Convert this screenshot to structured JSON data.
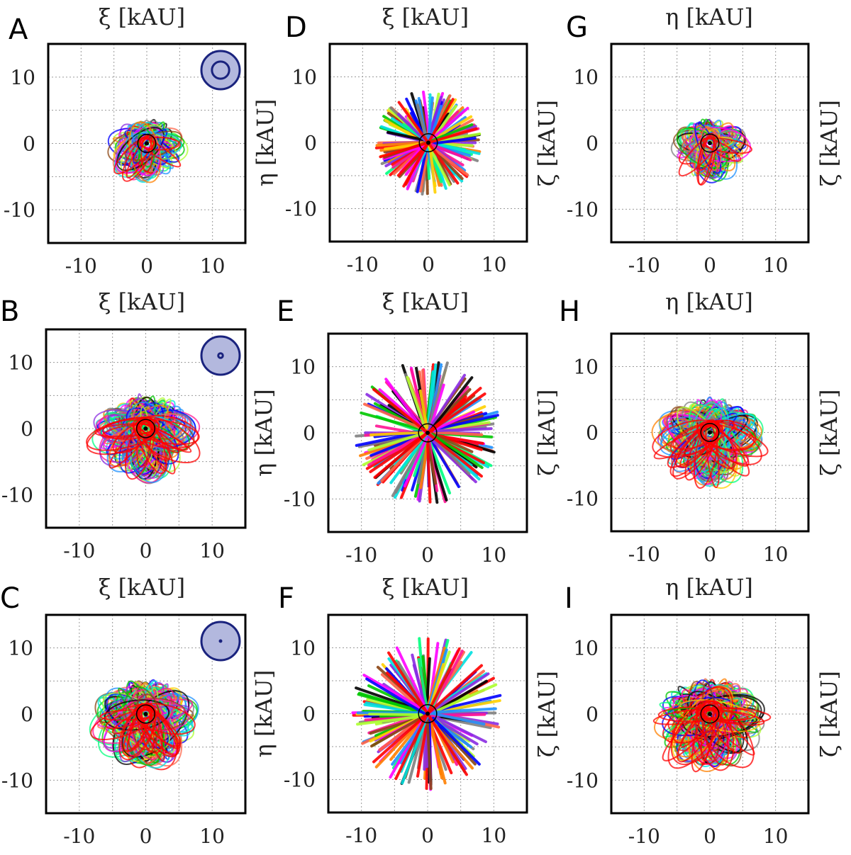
{
  "figure": {
    "colors": {
      "traj_palette": [
        "#ff0000",
        "#00c800",
        "#0000ff",
        "#ff00ff",
        "#00e0e0",
        "#ffd000",
        "#000000",
        "#ff8000",
        "#8a2be2",
        "#7f7f7f",
        "#00ff7f",
        "#ff1493",
        "#1e90ff",
        "#adff2f",
        "#8b4513",
        "#ff6347"
      ],
      "inset_fill": "#b3b8de",
      "inset_stroke": "#1a237e",
      "highlight": "#ff0000"
    }
  },
  "chart_data": [
    {
      "panel": "A",
      "type": "scatter",
      "style": "loops",
      "xlabel": "ξ [kAU]",
      "ylabel": "",
      "right_label": "",
      "xlim": [
        -15,
        15
      ],
      "ylim": [
        -15,
        15
      ],
      "xticks": [
        "-10",
        "0",
        "10"
      ],
      "yticks": [
        "-10",
        "0",
        "10"
      ],
      "xtick_values": [
        -10,
        0,
        10
      ],
      "ytick_values": [
        -10,
        0,
        10
      ],
      "extent_kau": 8.5,
      "inset": {
        "shown": true,
        "inner_ratio": 0.45
      }
    },
    {
      "panel": "B",
      "type": "scatter",
      "style": "loops",
      "xlabel": "ξ [kAU]",
      "ylabel": "",
      "right_label": "",
      "xlim": [
        -15,
        15
      ],
      "ylim": [
        -15,
        15
      ],
      "xticks": [
        "-10",
        "0",
        "10"
      ],
      "yticks": [
        "-10",
        "0",
        "10"
      ],
      "xtick_values": [
        -10,
        0,
        10
      ],
      "ytick_values": [
        -10,
        0,
        10
      ],
      "extent_kau": 11.5,
      "inset": {
        "shown": true,
        "inner_ratio": 0.12
      }
    },
    {
      "panel": "C",
      "type": "scatter",
      "style": "loops",
      "xlabel": "ξ [kAU]",
      "ylabel": "",
      "right_label": "",
      "xlim": [
        -15,
        15
      ],
      "ylim": [
        -15,
        15
      ],
      "xticks": [
        "-10",
        "0",
        "10"
      ],
      "yticks": [
        "-10",
        "0",
        "10"
      ],
      "xtick_values": [
        -10,
        0,
        10
      ],
      "ytick_values": [
        -10,
        0,
        10
      ],
      "extent_kau": 12,
      "inset": {
        "shown": true,
        "inner_ratio": 0.05
      }
    },
    {
      "panel": "D",
      "type": "scatter",
      "style": "rays",
      "xlabel": "ξ [kAU]",
      "ylabel": "η [kAU]",
      "right_label": "",
      "xlim": [
        -15,
        15
      ],
      "ylim": [
        -15,
        15
      ],
      "xticks": [
        "-10",
        "0",
        "10"
      ],
      "yticks": [
        "-10",
        "0",
        "10"
      ],
      "xtick_values": [
        -10,
        0,
        10
      ],
      "ytick_values": [
        -10,
        0,
        10
      ],
      "extent_kau": 8,
      "inset": {
        "shown": false
      }
    },
    {
      "panel": "E",
      "type": "scatter",
      "style": "rays",
      "xlabel": "ξ [kAU]",
      "ylabel": "η [kAU]",
      "right_label": "",
      "xlim": [
        -15,
        15
      ],
      "ylim": [
        -15,
        15
      ],
      "xticks": [
        "-10",
        "0",
        "10"
      ],
      "yticks": [
        "-10",
        "0",
        "10"
      ],
      "xtick_values": [
        -10,
        0,
        10
      ],
      "ytick_values": [
        -10,
        0,
        10
      ],
      "extent_kau": 11,
      "inset": {
        "shown": false
      }
    },
    {
      "panel": "F",
      "type": "scatter",
      "style": "rays",
      "xlabel": "ξ [kAU]",
      "ylabel": "η [kAU]",
      "right_label": "",
      "xlim": [
        -15,
        15
      ],
      "ylim": [
        -15,
        15
      ],
      "xticks": [
        "-10",
        "0",
        "10"
      ],
      "yticks": [
        "-10",
        "0",
        "10"
      ],
      "xtick_values": [
        -10,
        0,
        10
      ],
      "ytick_values": [
        -10,
        0,
        10
      ],
      "extent_kau": 11.5,
      "inset": {
        "shown": false
      }
    },
    {
      "panel": "G",
      "type": "scatter",
      "style": "loops",
      "xlabel": "η [kAU]",
      "ylabel": "ζ [kAU]",
      "right_label": "ζ [kAU]",
      "xlim": [
        -15,
        15
      ],
      "ylim": [
        -15,
        15
      ],
      "xticks": [
        "-10",
        "0",
        "10"
      ],
      "yticks": [
        "-10",
        "0",
        "10"
      ],
      "xtick_values": [
        -10,
        0,
        10
      ],
      "ytick_values": [
        -10,
        0,
        10
      ],
      "extent_kau": 8.5,
      "inset": {
        "shown": false
      }
    },
    {
      "panel": "H",
      "type": "scatter",
      "style": "loops",
      "xlabel": "η [kAU]",
      "ylabel": "ζ [kAU]",
      "right_label": "ζ [kAU]",
      "xlim": [
        -15,
        15
      ],
      "ylim": [
        -15,
        15
      ],
      "xticks": [
        "-10",
        "0",
        "10"
      ],
      "yticks": [
        "-10",
        "0",
        "10"
      ],
      "xtick_values": [
        -10,
        0,
        10
      ],
      "ytick_values": [
        -10,
        0,
        10
      ],
      "extent_kau": 12,
      "inset": {
        "shown": false
      }
    },
    {
      "panel": "I",
      "type": "scatter",
      "style": "loops",
      "xlabel": "η [kAU]",
      "ylabel": "ζ [kAU]",
      "right_label": "ζ [kAU]",
      "xlim": [
        -15,
        15
      ],
      "ylim": [
        -15,
        15
      ],
      "xticks": [
        "-10",
        "0",
        "10"
      ],
      "yticks": [
        "-10",
        "0",
        "10"
      ],
      "xtick_values": [
        -10,
        0,
        10
      ],
      "ytick_values": [
        -10,
        0,
        10
      ],
      "extent_kau": 12.5,
      "inset": {
        "shown": false
      }
    }
  ]
}
